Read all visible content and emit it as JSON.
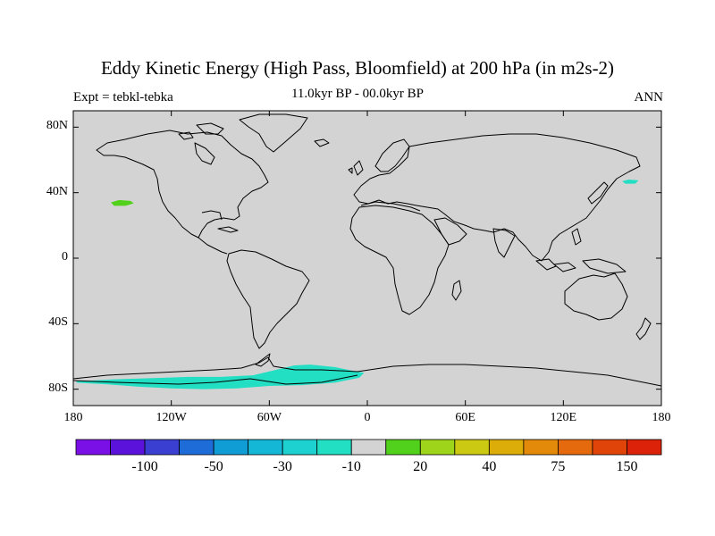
{
  "title": "Eddy Kinetic Energy (High Pass, Bloomfield) at 200 hPa (in m2s-2)",
  "subtitle_left": "Expt = tebkl-tebka",
  "subtitle_center": "11.0kyr BP - 00.0kyr BP",
  "subtitle_right": "ANN",
  "map": {
    "projection": "cylindrical-equidistant",
    "lon_range": [
      -180,
      180
    ],
    "lat_range": [
      -90,
      90
    ],
    "background_color": "#d3d3d3",
    "coastline_color": "#000000",
    "lat_ticks": [
      {
        "value": 80,
        "label": "80N"
      },
      {
        "value": 40,
        "label": "40N"
      },
      {
        "value": 0,
        "label": "0"
      },
      {
        "value": -40,
        "label": "40S"
      },
      {
        "value": -80,
        "label": "80S"
      }
    ],
    "lon_ticks": [
      {
        "value": -180,
        "label": "180"
      },
      {
        "value": -120,
        "label": "120W"
      },
      {
        "value": -60,
        "label": "60W"
      },
      {
        "value": 0,
        "label": "0"
      },
      {
        "value": 60,
        "label": "60E"
      },
      {
        "value": 120,
        "label": "120E"
      },
      {
        "value": 180,
        "label": "180"
      }
    ],
    "anomaly_regions": [
      {
        "name": "north-pacific-positive",
        "color": "#52d11c",
        "bin": "10 to 20",
        "outline": [
          [
            -157,
            34
          ],
          [
            -152,
            35.5
          ],
          [
            -145,
            35
          ],
          [
            -143,
            33.5
          ],
          [
            -148,
            32
          ],
          [
            -155,
            32
          ]
        ]
      },
      {
        "name": "kamchatka-negative",
        "color": "#22dfc4",
        "bin": "-30 to -10",
        "outline": [
          [
            156,
            47
          ],
          [
            160,
            48
          ],
          [
            166,
            47.5
          ],
          [
            164,
            45.5
          ],
          [
            158,
            45.5
          ]
        ]
      },
      {
        "name": "southern-ocean-negative",
        "color": "#22dfc4",
        "bin": "-30 to -10",
        "outline": [
          [
            -173,
            -75
          ],
          [
            -165,
            -74.5
          ],
          [
            -155,
            -74
          ],
          [
            -140,
            -73.5
          ],
          [
            -125,
            -73
          ],
          [
            -110,
            -72.5
          ],
          [
            -90,
            -72.5
          ],
          [
            -70,
            -71.5
          ],
          [
            -55,
            -68
          ],
          [
            -45,
            -65.5
          ],
          [
            -35,
            -65
          ],
          [
            -20,
            -66.5
          ],
          [
            -10,
            -68.5
          ],
          [
            -2,
            -70
          ],
          [
            -5,
            -73
          ],
          [
            -20,
            -76
          ],
          [
            -40,
            -77.5
          ],
          [
            -60,
            -78
          ],
          [
            -80,
            -79.5
          ],
          [
            -100,
            -80
          ],
          [
            -120,
            -79.5
          ],
          [
            -140,
            -78.5
          ],
          [
            -160,
            -77
          ],
          [
            -178,
            -76
          ],
          [
            -178,
            -75
          ]
        ]
      }
    ]
  },
  "colorbar": {
    "colors": [
      "#7b10e6",
      "#5b12db",
      "#3a3fd2",
      "#1e6cd8",
      "#109dd6",
      "#14b7d6",
      "#1cd1cf",
      "#22dfc4",
      "#d3d3d3",
      "#52d11c",
      "#9ed51a",
      "#ccc912",
      "#dcac08",
      "#e38a0b",
      "#e56a0d",
      "#e04408",
      "#dd220a"
    ],
    "labels": [
      {
        "after_box": 2,
        "text": "-100"
      },
      {
        "after_box": 4,
        "text": "-50"
      },
      {
        "after_box": 6,
        "text": "-30"
      },
      {
        "after_box": 8,
        "text": "-10"
      },
      {
        "after_box": 10,
        "text": "20"
      },
      {
        "after_box": 12,
        "text": "40"
      },
      {
        "after_box": 14,
        "text": "75"
      },
      {
        "after_box": 16,
        "text": "150"
      }
    ]
  }
}
